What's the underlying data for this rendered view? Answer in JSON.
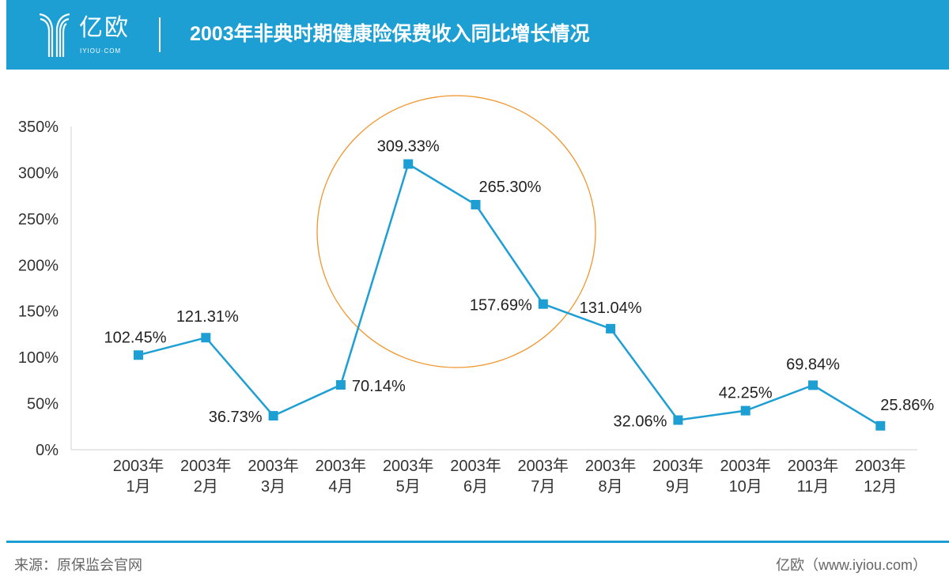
{
  "header": {
    "logo_text": "亿欧",
    "logo_sub": "IYIOU·COM",
    "title": "2003年非典时期健康险保费收入同比增长情况"
  },
  "footer": {
    "source": "来源：原保监会官网",
    "brand": "亿欧（www.iyiou.com）"
  },
  "colors": {
    "header": "#1d9fd4",
    "line": "#1d9fd4",
    "highlight_circle": "#f0962e"
  },
  "chart_data": {
    "type": "line",
    "title": "",
    "categories": [
      [
        "2003年",
        "1月"
      ],
      [
        "2003年",
        "2月"
      ],
      [
        "2003年",
        "3月"
      ],
      [
        "2003年",
        "4月"
      ],
      [
        "2003年",
        "5月"
      ],
      [
        "2003年",
        "6月"
      ],
      [
        "2003年",
        "7月"
      ],
      [
        "2003年",
        "8月"
      ],
      [
        "2003年",
        "9月"
      ],
      [
        "2003年",
        "10月"
      ],
      [
        "2003年",
        "11月"
      ],
      [
        "2003年",
        "12月"
      ]
    ],
    "values": [
      102.45,
      121.31,
      36.73,
      70.14,
      309.33,
      265.3,
      157.69,
      131.04,
      32.06,
      42.25,
      69.84,
      25.86
    ],
    "labels": [
      "102.45%",
      "121.31%",
      "36.73%",
      "70.14%",
      "309.33%",
      "265.30%",
      "157.69%",
      "131.04%",
      "32.06%",
      "42.25%",
      "69.84%",
      "25.86%"
    ],
    "yticks": [
      "0%",
      "50%",
      "100%",
      "150%",
      "200%",
      "250%",
      "300%",
      "350%"
    ],
    "ylim": [
      0,
      350
    ],
    "grid": false,
    "annotation": "orange circle highlighting May–July"
  }
}
